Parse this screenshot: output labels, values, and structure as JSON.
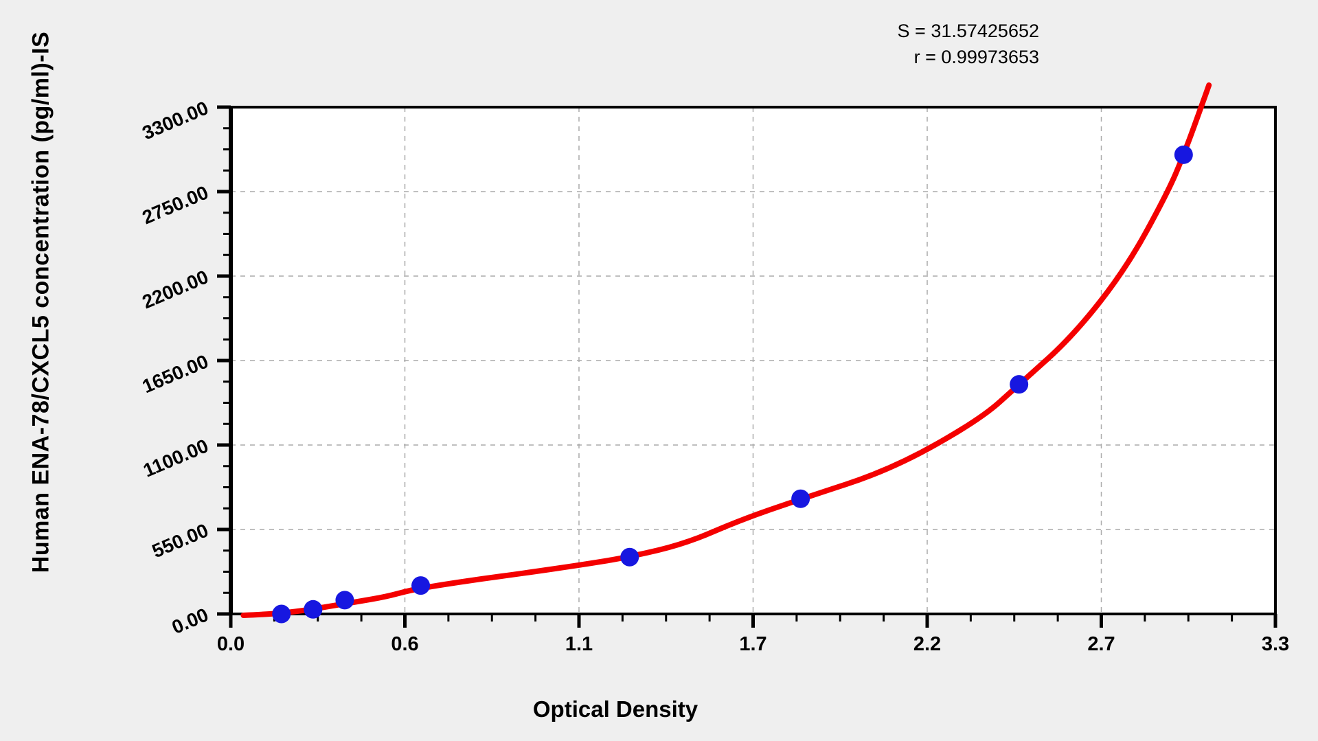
{
  "stats": {
    "s_label": "S = 31.57425652",
    "r_label": "r = 0.99973653"
  },
  "chart_data": {
    "type": "scatter",
    "title": "",
    "xlabel": "Optical Density",
    "ylabel": "Human ENA-78/CXCL5 concentration (pg/ml)-IS",
    "xlim": [
      0,
      3.3
    ],
    "ylim": [
      0,
      3300
    ],
    "x_tick_labels": [
      "0.0",
      "0.6",
      "1.1",
      "1.7",
      "2.2",
      "2.7",
      "3.3"
    ],
    "y_tick_labels": [
      "0.00",
      "550.00",
      "1100.00",
      "1650.00",
      "2200.00",
      "2750.00",
      "3300.00"
    ],
    "grid": true,
    "legend": false,
    "annotations": [
      "S = 31.57425652",
      "r = 0.99973653"
    ],
    "colors": {
      "curve": "#f40000",
      "points": "#1717e0",
      "grid": "#aaaaaa",
      "axis": "#000000",
      "plot_bg": "#ffffff",
      "page_bg": "#efefef"
    },
    "series": [
      {
        "name": "standard-points",
        "type": "scatter",
        "color": "#1717e0",
        "points": [
          [
            0.16,
            0
          ],
          [
            0.26,
            30
          ],
          [
            0.36,
            90
          ],
          [
            0.6,
            185
          ],
          [
            1.26,
            370
          ],
          [
            1.8,
            750
          ],
          [
            2.49,
            1495
          ],
          [
            3.01,
            2990
          ]
        ]
      },
      {
        "name": "fitted-curve",
        "type": "line",
        "color": "#f40000",
        "points": [
          [
            0.04,
            -9
          ],
          [
            0.14,
            0
          ],
          [
            0.23,
            22
          ],
          [
            0.31,
            49
          ],
          [
            0.4,
            80
          ],
          [
            0.49,
            112
          ],
          [
            0.57,
            156
          ],
          [
            0.66,
            188
          ],
          [
            0.79,
            228
          ],
          [
            0.92,
            264
          ],
          [
            1.1,
            317
          ],
          [
            1.26,
            371
          ],
          [
            1.44,
            460
          ],
          [
            1.61,
            612
          ],
          [
            1.8,
            747
          ],
          [
            2.09,
            943
          ],
          [
            2.37,
            1270
          ],
          [
            2.49,
            1494
          ],
          [
            2.66,
            1807
          ],
          [
            2.83,
            2254
          ],
          [
            2.96,
            2746
          ],
          [
            3.01,
            2987
          ],
          [
            3.07,
            3327
          ],
          [
            3.09,
            3443
          ]
        ]
      }
    ]
  }
}
